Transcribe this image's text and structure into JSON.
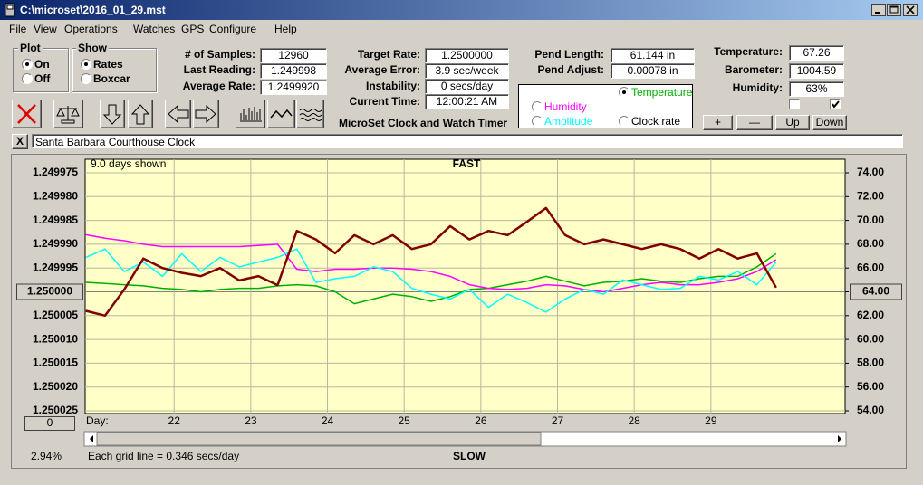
{
  "window": {
    "title": "C:\\microset\\2016_01_29.mst"
  },
  "menu": [
    "File",
    "View",
    "Operations",
    "Watches",
    "GPS",
    "Configure",
    "Help"
  ],
  "plot_group": {
    "title": "Plot",
    "options": [
      "On",
      "Off"
    ]
  },
  "show_group": {
    "title": "Show",
    "options": [
      "Rates",
      "Boxcar"
    ]
  },
  "fields": [
    {
      "label": "# of Samples:",
      "value": "12960"
    },
    {
      "label": "Last Reading:",
      "value": "1.249998"
    },
    {
      "label": "Average Rate:",
      "value": "1.2499920"
    },
    {
      "label": "Target Rate:",
      "value": "1.2500000"
    },
    {
      "label": "Average Error:",
      "value": "3.9 sec/week"
    },
    {
      "label": "Instability:",
      "value": "0 secs/day"
    },
    {
      "label": "Current Time:",
      "value": "12:00:21 AM"
    },
    {
      "label": "Pend Length:",
      "value": "61.144 in"
    },
    {
      "label": "Pend Adjust:",
      "value": "0.00078 in"
    },
    {
      "label": "Temperature:",
      "value": "67.26"
    },
    {
      "label": "Barometer:",
      "value": "1004.59"
    },
    {
      "label": "Humidity:",
      "value": "63%"
    }
  ],
  "app_name": "MicroSet Clock and Watch Timer",
  "buttons": [
    "+",
    "—",
    "Up",
    "Down"
  ],
  "clock": {
    "close": "X",
    "name": "Santa Barbara Courthouse Clock"
  },
  "chart_data": {
    "type": "line",
    "days_shown": "9.0 days shown",
    "top_label": "FAST",
    "bottom_label": "SLOW",
    "x_label": "Day:",
    "grid_note": "Each grid line = 0.346 secs/day",
    "percent": "2.94%",
    "offset": "0",
    "x": [
      20.85,
      21.1,
      21.35,
      21.6,
      21.85,
      22.1,
      22.35,
      22.6,
      22.85,
      23.1,
      23.35,
      23.6,
      23.85,
      24.1,
      24.35,
      24.6,
      24.85,
      25.1,
      25.35,
      25.6,
      25.85,
      26.1,
      26.35,
      26.6,
      26.85,
      27.1,
      27.35,
      27.6,
      27.85,
      28.1,
      28.35,
      28.6,
      28.85,
      29.1,
      29.35,
      29.6,
      29.85
    ],
    "xlim": [
      20.84,
      30.75
    ],
    "xticks": [
      22,
      23,
      24,
      25,
      26,
      27,
      28,
      29
    ],
    "ylim": [
      1.250025,
      1.249975
    ],
    "yticks": [
      1.249975,
      {
        "value": 1.24998,
        "label": "1.249980"
      },
      1.249985,
      {
        "value": 1.24999,
        "label": "1.249990"
      },
      1.249995,
      {
        "value": 1.25,
        "label": "1.250000"
      },
      1.250005,
      {
        "value": 1.25001,
        "label": "1.250010"
      },
      1.250015,
      {
        "value": 1.25002,
        "label": "1.250020"
      },
      1.250025
    ],
    "y2lim": [
      54,
      74
    ],
    "y2ticks": [
      {
        "value": 74,
        "label": "74.00"
      },
      {
        "value": 72,
        "label": "72.00"
      },
      {
        "value": 70,
        "label": "70.00"
      },
      {
        "value": 68,
        "label": "68.00"
      },
      {
        "value": 66,
        "label": "66.00"
      },
      {
        "value": 64,
        "label": "64.00"
      },
      {
        "value": 62,
        "label": "62.00"
      },
      {
        "value": 60,
        "label": "60.00"
      },
      {
        "value": 58,
        "label": "58.00"
      },
      {
        "value": 56,
        "label": "56.00"
      },
      {
        "value": 54,
        "label": "54.00"
      }
    ],
    "grid": true,
    "series": [
      {
        "name": "Temperature",
        "color": "#00b000",
        "axis": "y2",
        "values": [
          64.8,
          64.7,
          64.6,
          64.5,
          64.3,
          64.2,
          64.0,
          64.2,
          64.3,
          64.3,
          64.5,
          64.6,
          64.5,
          64.0,
          63.0,
          63.4,
          63.8,
          63.6,
          63.2,
          63.6,
          64.2,
          64.3,
          64.6,
          64.9,
          65.3,
          64.9,
          64.5,
          64.8,
          64.9,
          65.1,
          64.9,
          64.8,
          65.1,
          65.3,
          65.3,
          66.1,
          67.2
        ]
      },
      {
        "name": "Humidity",
        "color": "#ff00ff",
        "axis": "y2",
        "values": [
          68.8,
          68.5,
          68.3,
          68.0,
          67.8,
          67.8,
          67.8,
          67.8,
          67.8,
          67.9,
          68.0,
          65.9,
          65.7,
          65.9,
          65.9,
          66.0,
          66.0,
          65.9,
          65.7,
          65.3,
          64.6,
          64.3,
          64.2,
          64.3,
          64.6,
          64.5,
          64.2,
          64.0,
          64.3,
          64.6,
          64.8,
          64.6,
          64.6,
          64.8,
          65.1,
          65.7,
          66.7
        ]
      },
      {
        "name": "Amplitude",
        "color": "#00ffff",
        "axis": "y2",
        "values": [
          66.9,
          67.6,
          65.7,
          66.5,
          65.3,
          67.2,
          65.7,
          66.9,
          66.1,
          66.5,
          66.9,
          67.6,
          64.8,
          65.1,
          65.3,
          66.1,
          65.7,
          64.3,
          63.8,
          63.4,
          64.2,
          62.7,
          63.8,
          63.1,
          62.3,
          63.4,
          64.2,
          63.8,
          65.0,
          64.6,
          64.2,
          64.3,
          65.3,
          65.0,
          65.7,
          64.6,
          66.5
        ]
      },
      {
        "name": "Clock rate",
        "color": "#800000",
        "values": [
          1.250004,
          1.250005,
          1.2499995,
          1.249993,
          1.249995,
          1.249996,
          1.2499967,
          1.249995,
          1.2499976,
          1.2499967,
          1.2499986,
          1.2499872,
          1.249989,
          1.2499919,
          1.2499881,
          1.24999,
          1.2499881,
          1.249991,
          1.24999,
          1.2499862,
          1.249989,
          1.2499872,
          1.2499881,
          1.2499853,
          1.2499824,
          1.2499881,
          1.24999,
          1.249989,
          1.24999,
          1.249991,
          1.24999,
          1.249991,
          1.249993,
          1.249991,
          1.249993,
          1.2499919,
          1.2499991
        ]
      }
    ]
  }
}
